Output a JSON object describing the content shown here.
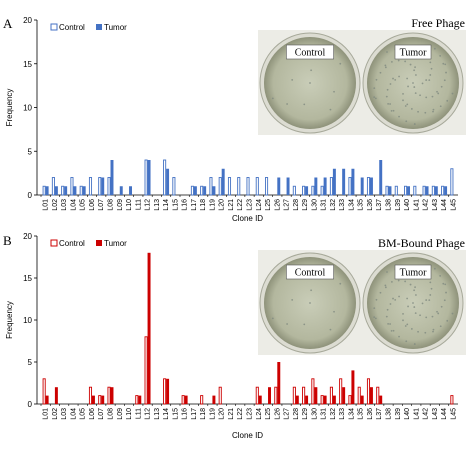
{
  "chart_data": [
    {
      "type": "bar",
      "panel": "A",
      "title": "Free Phage",
      "xlabel": "Clone ID",
      "ylabel": "Frequency",
      "ylim": [
        0,
        20
      ],
      "yticks": [
        0,
        5,
        10,
        15,
        20
      ],
      "grid": false,
      "legend": "top-left",
      "dish_labels": [
        "Control",
        "Tumor"
      ],
      "categories": [
        "L01",
        "L02",
        "L03",
        "L04",
        "L05",
        "L06",
        "L07",
        "L08",
        "L09",
        "L10",
        "L11",
        "L12",
        "L13",
        "L14",
        "L15",
        "L16",
        "L17",
        "L18",
        "L19",
        "L20",
        "L21",
        "L22",
        "L23",
        "L24",
        "L25",
        "L26",
        "L27",
        "L28",
        "L29",
        "L30",
        "L31",
        "L32",
        "L33",
        "L34",
        "L35",
        "L36",
        "L37",
        "L38",
        "L39",
        "L40",
        "L41",
        "L42",
        "L43",
        "L44",
        "L45"
      ],
      "series": [
        {
          "name": "Control",
          "style": "outline",
          "color": "#4472c4",
          "values": [
            1,
            2,
            1,
            2,
            1,
            2,
            2,
            2,
            0,
            0,
            0,
            4,
            0,
            4,
            2,
            0,
            1,
            1,
            2,
            2,
            2,
            2,
            2,
            2,
            2,
            0,
            0,
            1,
            1,
            1,
            1,
            2,
            0,
            2,
            0,
            2,
            0,
            1,
            1,
            1,
            1,
            1,
            1,
            1,
            3
          ]
        },
        {
          "name": "Tumor",
          "style": "filled",
          "color": "#4472c4",
          "values": [
            1,
            1,
            1,
            1,
            1,
            0,
            2,
            4,
            1,
            1,
            0,
            4,
            0,
            3,
            0,
            0,
            1,
            1,
            1,
            3,
            0,
            0,
            0,
            0,
            0,
            2,
            2,
            0,
            1,
            2,
            2,
            3,
            3,
            3,
            2,
            2,
            4,
            1,
            0,
            1,
            0,
            1,
            1,
            1,
            0
          ]
        }
      ]
    },
    {
      "type": "bar",
      "panel": "B",
      "title": "BM-Bound Phage",
      "xlabel": "Clone ID",
      "ylabel": "Frequency",
      "ylim": [
        0,
        20
      ],
      "yticks": [
        0,
        5,
        10,
        15,
        20
      ],
      "grid": false,
      "legend": "top-left",
      "dish_labels": [
        "Control",
        "Tumor"
      ],
      "categories": [
        "L01",
        "L02",
        "L03",
        "L04",
        "L05",
        "L06",
        "L07",
        "L08",
        "L09",
        "L10",
        "L11",
        "L12",
        "L13",
        "L14",
        "L15",
        "L16",
        "L17",
        "L18",
        "L19",
        "L20",
        "L21",
        "L22",
        "L23",
        "L24",
        "L25",
        "L26",
        "L27",
        "L28",
        "L29",
        "L30",
        "L31",
        "L32",
        "L33",
        "L34",
        "L35",
        "L36",
        "L37",
        "L38",
        "L39",
        "L40",
        "L41",
        "L42",
        "L43",
        "L44",
        "L45"
      ],
      "series": [
        {
          "name": "Control",
          "style": "outline",
          "color": "#cc0000",
          "values": [
            3,
            0,
            0,
            0,
            0,
            2,
            1,
            2,
            0,
            0,
            1,
            8,
            0,
            3,
            0,
            1,
            0,
            1,
            0,
            2,
            0,
            0,
            0,
            2,
            0,
            2,
            0,
            2,
            2,
            3,
            1,
            2,
            3,
            1,
            2,
            3,
            2,
            0,
            0,
            0,
            0,
            0,
            0,
            0,
            1
          ]
        },
        {
          "name": "Tumor",
          "style": "filled",
          "color": "#cc0000",
          "values": [
            1,
            2,
            0,
            0,
            0,
            1,
            1,
            2,
            0,
            0,
            1,
            18,
            0,
            3,
            0,
            1,
            0,
            0,
            1,
            0,
            0,
            0,
            0,
            1,
            2,
            5,
            0,
            1,
            1,
            2,
            1,
            1,
            2,
            4,
            1,
            2,
            1,
            0,
            0,
            0,
            0,
            0,
            0,
            0,
            0
          ]
        }
      ]
    }
  ]
}
